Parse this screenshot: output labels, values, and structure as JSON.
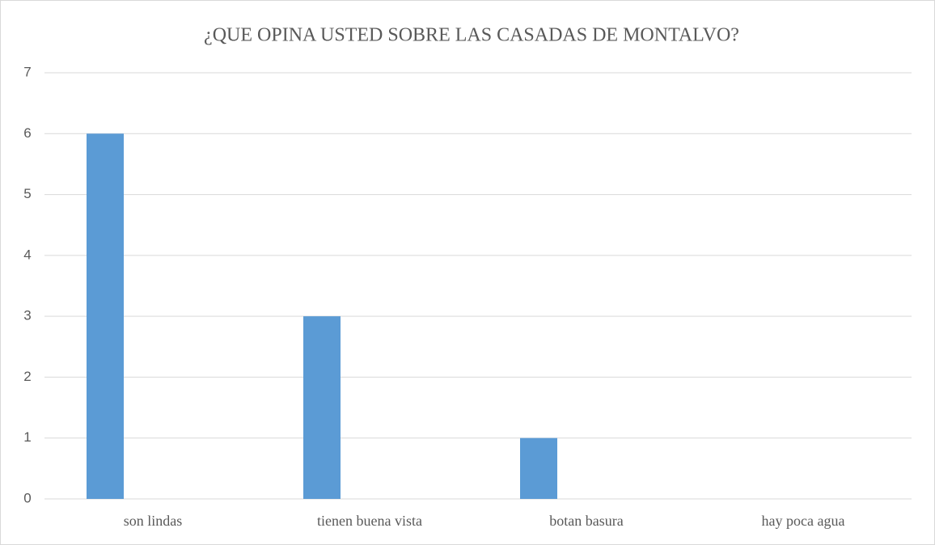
{
  "chart_data": {
    "type": "bar",
    "title": "¿QUE OPINA USTED SOBRE LAS CASADAS DE MONTALVO?",
    "categories": [
      "son lindas",
      "tienen buena vista",
      "botan basura",
      "hay poca agua"
    ],
    "values": [
      6,
      3,
      1,
      0
    ],
    "color": "#5b9bd5",
    "ylim": [
      0,
      7
    ],
    "yticks": [
      0,
      1,
      2,
      3,
      4,
      5,
      6,
      7
    ],
    "grid": true
  }
}
